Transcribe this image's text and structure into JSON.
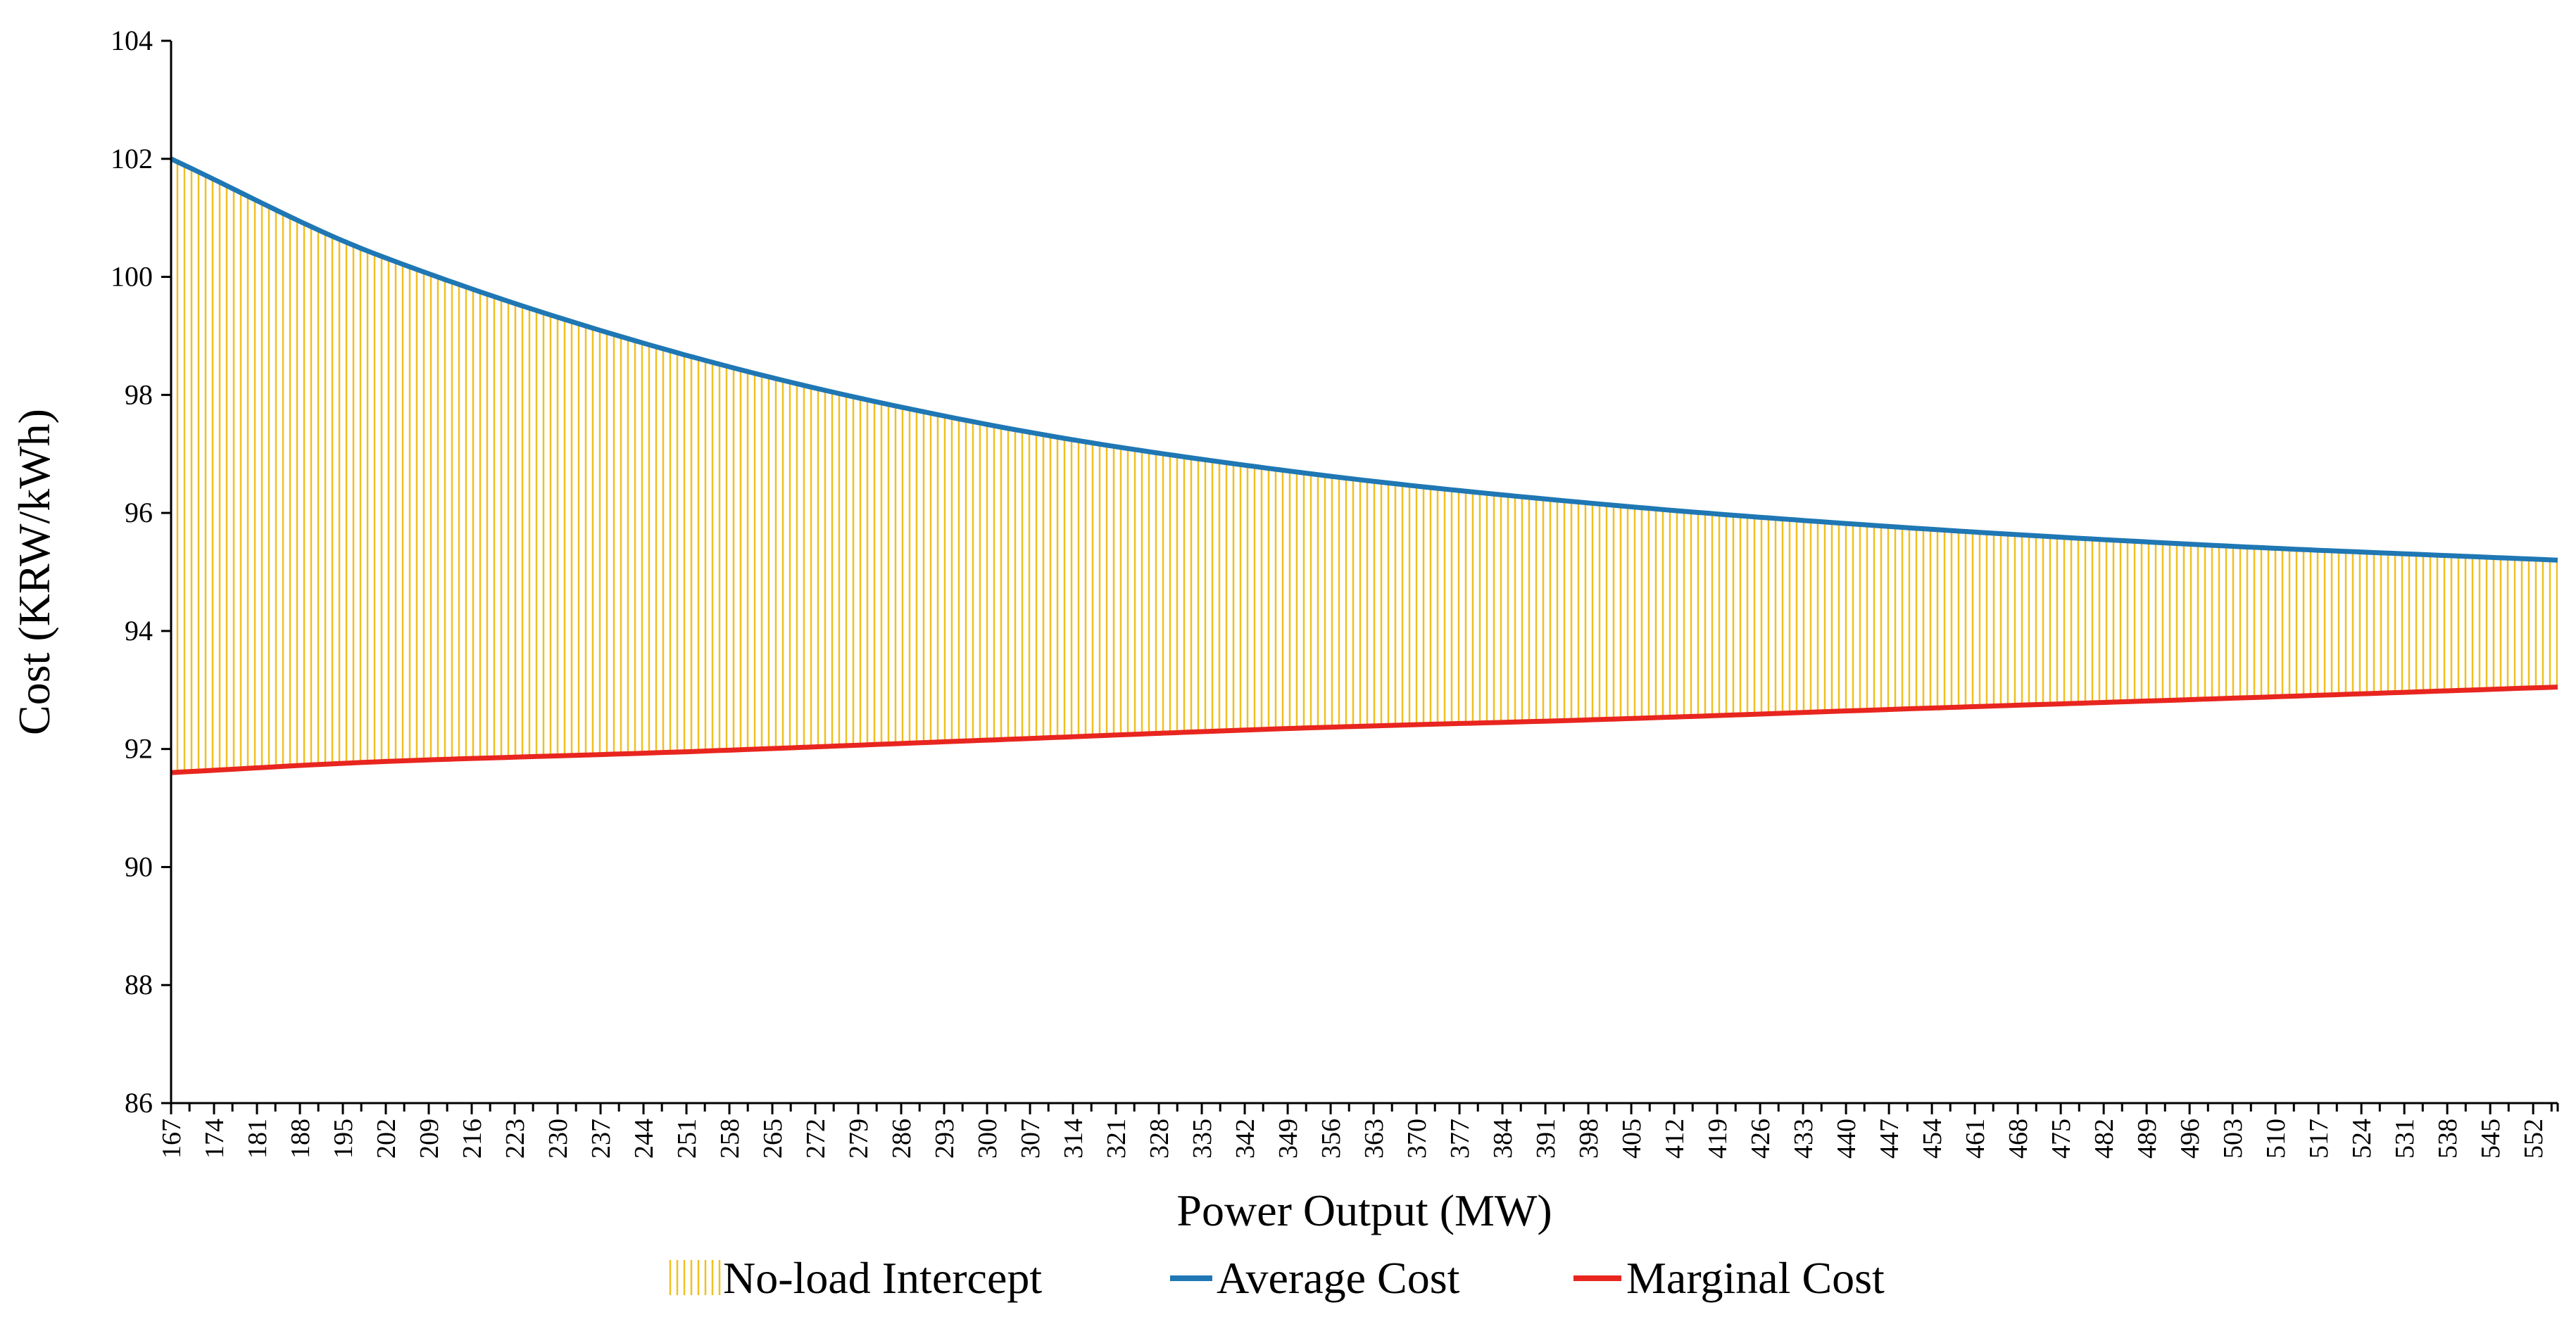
{
  "chart_data": {
    "type": "area",
    "xlabel": "Power Output (MW)",
    "ylabel": "Cost (KRW/kWh)",
    "ylim": [
      86,
      104
    ],
    "xlim": [
      167,
      556
    ],
    "grid": false,
    "legend_position": "bottom",
    "yticks": [
      "86",
      "88",
      "90",
      "92",
      "94",
      "96",
      "98",
      "100",
      "102",
      "104"
    ],
    "xticks": [
      "167",
      "174",
      "181",
      "188",
      "195",
      "202",
      "209",
      "216",
      "223",
      "230",
      "237",
      "244",
      "251",
      "258",
      "265",
      "272",
      "279",
      "286",
      "293",
      "300",
      "307",
      "314",
      "321",
      "328",
      "335",
      "342",
      "349",
      "356",
      "363",
      "370",
      "377",
      "384",
      "391",
      "398",
      "405",
      "412",
      "419",
      "426",
      "433",
      "440",
      "447",
      "454",
      "461",
      "468",
      "475",
      "482",
      "489",
      "496",
      "503",
      "510",
      "517",
      "524",
      "531",
      "538",
      "545",
      "552"
    ],
    "x": [
      167,
      200,
      250,
      300,
      350,
      400,
      450,
      500,
      556
    ],
    "series": [
      {
        "name": "No-load Intercept",
        "kind": "area_between",
        "lower": "Marginal Cost",
        "upper": "Average Cost",
        "color": "#F0C020"
      },
      {
        "name": "Average Cost",
        "kind": "line",
        "color": "#1F77B4",
        "values": [
          102.0,
          100.4,
          98.7,
          97.5,
          96.7,
          96.15,
          95.75,
          95.45,
          95.2
        ]
      },
      {
        "name": "Marginal Cost",
        "kind": "line",
        "color": "#E8251F",
        "values": [
          91.6,
          91.78,
          91.95,
          92.15,
          92.35,
          92.5,
          92.68,
          92.85,
          93.05
        ]
      }
    ]
  }
}
